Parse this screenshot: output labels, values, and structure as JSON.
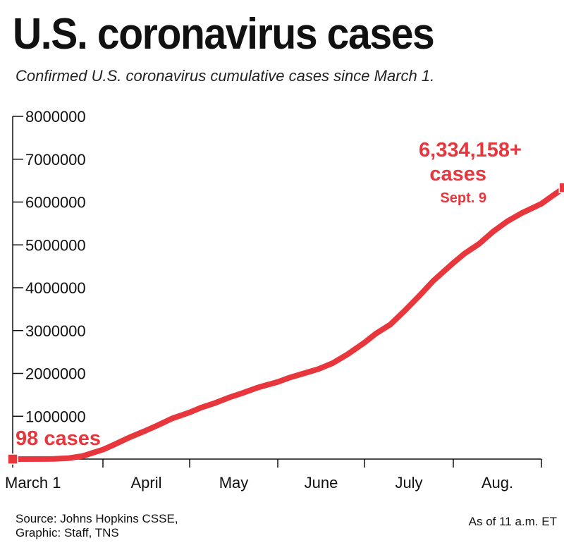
{
  "header": {
    "title": "U.S. coronavirus cases",
    "subtitle": "Confirmed U.S. coronavirus cumulative cases since March 1."
  },
  "footer": {
    "source_line1": "Source: Johns Hopkins CSSE,",
    "source_line2": "Graphic: Staff, TNS",
    "as_of": "As of 11 a.m. ET"
  },
  "colors": {
    "line": "#e8363d",
    "text": "#111111",
    "axis": "#111111"
  },
  "chart_data": {
    "type": "line",
    "title": "U.S. coronavirus cases",
    "subtitle": "Confirmed U.S. coronavirus cumulative cases since March 1.",
    "xlabel": "",
    "ylabel": "",
    "x_ticks": [
      "March 1",
      "April",
      "May",
      "June",
      "July",
      "Aug.",
      ""
    ],
    "x_tick_dates": [
      "2020-03-01",
      "2020-04-01",
      "2020-05-01",
      "2020-06-01",
      "2020-07-01",
      "2020-08-01",
      "2020-09-01"
    ],
    "ylim": [
      0,
      8000000
    ],
    "y_ticks": [
      0,
      1000000,
      2000000,
      3000000,
      4000000,
      5000000,
      6000000,
      7000000,
      8000000
    ],
    "y_tick_labels": [
      "",
      "1000000",
      "2000000",
      "3000000",
      "4000000",
      "5000000",
      "6000000",
      "7000000",
      "8000000"
    ],
    "grid": false,
    "legend": "none",
    "series": [
      {
        "x": [
          "2020-03-01",
          "2020-03-10",
          "2020-03-15",
          "2020-03-20",
          "2020-03-25",
          "2020-04-01",
          "2020-04-05",
          "2020-04-10",
          "2020-04-15",
          "2020-04-20",
          "2020-04-25",
          "2020-05-01",
          "2020-05-05",
          "2020-05-10",
          "2020-05-15",
          "2020-05-20",
          "2020-05-25",
          "2020-06-01",
          "2020-06-05",
          "2020-06-10",
          "2020-06-15",
          "2020-06-20",
          "2020-06-25",
          "2020-07-01",
          "2020-07-05",
          "2020-07-10",
          "2020-07-15",
          "2020-07-20",
          "2020-07-25",
          "2020-08-01",
          "2020-08-05",
          "2020-08-10",
          "2020-08-15",
          "2020-08-20",
          "2020-08-25",
          "2020-09-01",
          "2020-09-05",
          "2020-09-09"
        ],
        "values": [
          98,
          1000,
          3500,
          20000,
          70000,
          220000,
          340000,
          500000,
          640000,
          790000,
          950000,
          1090000,
          1200000,
          1310000,
          1440000,
          1550000,
          1670000,
          1800000,
          1900000,
          2000000,
          2100000,
          2240000,
          2440000,
          2720000,
          2930000,
          3140000,
          3460000,
          3800000,
          4160000,
          4580000,
          4800000,
          5020000,
          5310000,
          5550000,
          5740000,
          5960000,
          6150000,
          6334158
        ]
      }
    ],
    "annotations": [
      {
        "text": "98 cases",
        "x": "2020-03-01",
        "y": 98
      },
      {
        "text": "6,334,158+",
        "x": "2020-09-09",
        "y": 6334158
      },
      {
        "text": "cases",
        "x": "2020-09-09",
        "y": 6334158
      },
      {
        "text": "Sept. 9",
        "x": "2020-09-09",
        "y": 6334158
      }
    ]
  }
}
